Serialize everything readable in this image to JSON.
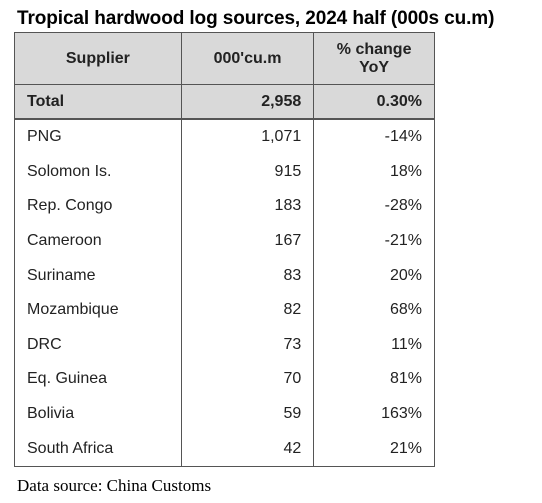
{
  "title": "Tropical hardwood log sources, 2024 half (000s cu.m)",
  "table": {
    "headers": {
      "supplier": "Supplier",
      "volume": "000'cu.m",
      "change_line1": "% change",
      "change_line2": "YoY"
    },
    "total": {
      "supplier": "Total",
      "volume": "2,958",
      "change": "0.30%"
    },
    "rows": [
      {
        "supplier": "PNG",
        "volume": "1,071",
        "change": "-14%"
      },
      {
        "supplier": "Solomon Is.",
        "volume": "915",
        "change": "18%"
      },
      {
        "supplier": "Rep. Congo",
        "volume": "183",
        "change": "-28%"
      },
      {
        "supplier": "Cameroon",
        "volume": "167",
        "change": "-21%"
      },
      {
        "supplier": "Suriname",
        "volume": "83",
        "change": "20%"
      },
      {
        "supplier": "Mozambique",
        "volume": "82",
        "change": "68%"
      },
      {
        "supplier": "DRC",
        "volume": "73",
        "change": "11%"
      },
      {
        "supplier": "Eq. Guinea",
        "volume": "70",
        "change": "81%"
      },
      {
        "supplier": "Bolivia",
        "volume": "59",
        "change": "163%"
      },
      {
        "supplier": "South Africa",
        "volume": "42",
        "change": "21%"
      }
    ]
  },
  "source": "Data source: China Customs"
}
